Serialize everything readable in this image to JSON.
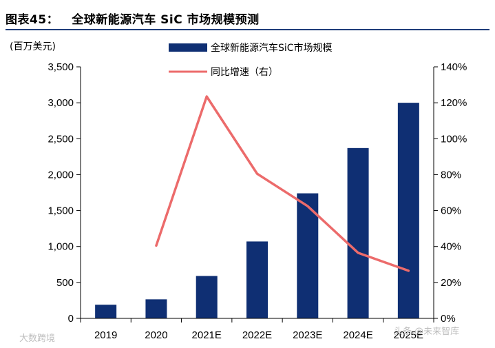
{
  "header": {
    "figure_label": "图表45：",
    "title": "全球新能源汽车 SiC 市场规模预测"
  },
  "chart_data": {
    "type": "bar",
    "title": "全球新能源汽车 SiC 市场规模预测",
    "ylabel": "(百万美元)",
    "categories": [
      "2019",
      "2020",
      "2021E",
      "2022E",
      "2023E",
      "2024E",
      "2025E"
    ],
    "ylim": [
      0,
      3500
    ],
    "yticks": [
      "0",
      "500",
      "1,000",
      "1,500",
      "2,000",
      "2,500",
      "3,000",
      "3,500"
    ],
    "y2lim": [
      0,
      140
    ],
    "y2ticks": [
      "0%",
      "20%",
      "40%",
      "60%",
      "80%",
      "100%",
      "120%",
      "140%"
    ],
    "series": [
      {
        "name": "全球新能源汽车SiC市场规模",
        "kind": "bar",
        "axis": "left",
        "color": "#0f2f73",
        "values": [
          190,
          265,
          590,
          1070,
          1740,
          2370,
          3000
        ]
      },
      {
        "name": "同比增速（右）",
        "kind": "line",
        "axis": "right",
        "color": "#ec6b6b",
        "values": [
          null,
          40.5,
          123.5,
          80.5,
          62.5,
          36.5,
          26.5
        ]
      }
    ],
    "legend_position": "top"
  },
  "watermarks": {
    "left": "大数跨境",
    "right": "头条 @未来智库"
  }
}
